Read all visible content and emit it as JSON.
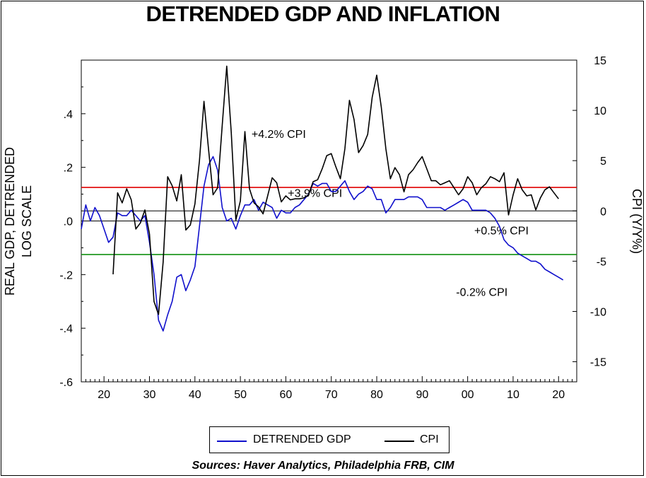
{
  "title": "DETRENDED GDP AND INFLATION",
  "source": "Sources:  Haver Analytics, Philadelphia FRB, CIM",
  "legend": {
    "gdp_label": "DETRENDED GDP",
    "cpi_label": "CPI",
    "gdp_color": "#1010cc",
    "cpi_color": "#000000"
  },
  "chart_data": {
    "type": "line",
    "x_axis": {
      "range": [
        1915,
        2024
      ],
      "ticks": [
        1920,
        1930,
        1940,
        1950,
        1960,
        1970,
        1980,
        1990,
        2000,
        2010,
        2020
      ],
      "tick_labels": [
        "20",
        "30",
        "40",
        "50",
        "60",
        "70",
        "80",
        "90",
        "00",
        "10",
        "20"
      ]
    },
    "left_axis": {
      "label_line1": "REAL GDP, DETRENDED",
      "label_line2": "LOG SCALE",
      "range": [
        -0.6,
        0.6
      ],
      "ticks": [
        -0.6,
        -0.4,
        -0.2,
        0.0,
        0.2,
        0.4
      ],
      "tick_labels": [
        "-.6",
        "-.4",
        "-.2",
        ".0",
        ".2",
        ".4"
      ]
    },
    "right_axis": {
      "label": "CPI (Y/Y%)",
      "range": [
        -17,
        15
      ],
      "ticks": [
        -15,
        -10,
        -5,
        0,
        5,
        10,
        15
      ],
      "tick_labels": [
        "-15",
        "-10",
        "-5",
        "0",
        "5",
        "10",
        "15"
      ]
    },
    "reference_lines": [
      {
        "axis": "left",
        "value": 0.125,
        "color": "#e00000"
      },
      {
        "axis": "left",
        "value": 0.0,
        "color": "#000000"
      },
      {
        "axis": "left",
        "value": -0.125,
        "color": "#109010"
      },
      {
        "axis": "right",
        "value": 0,
        "color": "#000000"
      }
    ],
    "annotations": [
      {
        "text": "+4.2% CPI",
        "x": 1917,
        "y": 0.31
      },
      {
        "text": "+3.9% CPI",
        "x": 1925,
        "y": 0.09
      },
      {
        "text": "+0.5% CPI",
        "x": 1966,
        "y": -0.05
      },
      {
        "text": "-0.2% CPI",
        "x": 1962,
        "y": -0.28
      }
    ],
    "series": [
      {
        "name": "DETRENDED GDP",
        "axis": "left",
        "color": "#1010cc",
        "points": [
          [
            1915,
            -0.03
          ],
          [
            1916,
            0.06
          ],
          [
            1917,
            0.0
          ],
          [
            1918,
            0.05
          ],
          [
            1919,
            0.02
          ],
          [
            1920,
            -0.03
          ],
          [
            1921,
            -0.08
          ],
          [
            1922,
            -0.06
          ],
          [
            1923,
            0.03
          ],
          [
            1924,
            0.02
          ],
          [
            1925,
            0.02
          ],
          [
            1926,
            0.04
          ],
          [
            1927,
            0.02
          ],
          [
            1928,
            0.0
          ],
          [
            1929,
            0.02
          ],
          [
            1930,
            -0.08
          ],
          [
            1931,
            -0.2
          ],
          [
            1932,
            -0.37
          ],
          [
            1933,
            -0.41
          ],
          [
            1934,
            -0.35
          ],
          [
            1935,
            -0.3
          ],
          [
            1936,
            -0.21
          ],
          [
            1937,
            -0.2
          ],
          [
            1938,
            -0.26
          ],
          [
            1939,
            -0.22
          ],
          [
            1940,
            -0.17
          ],
          [
            1941,
            -0.02
          ],
          [
            1942,
            0.13
          ],
          [
            1943,
            0.21
          ],
          [
            1944,
            0.24
          ],
          [
            1945,
            0.19
          ],
          [
            1946,
            0.05
          ],
          [
            1947,
            0.0
          ],
          [
            1948,
            0.01
          ],
          [
            1949,
            -0.03
          ],
          [
            1950,
            0.02
          ],
          [
            1951,
            0.06
          ],
          [
            1952,
            0.06
          ],
          [
            1953,
            0.08
          ],
          [
            1954,
            0.04
          ],
          [
            1955,
            0.07
          ],
          [
            1956,
            0.06
          ],
          [
            1957,
            0.05
          ],
          [
            1958,
            0.01
          ],
          [
            1959,
            0.04
          ],
          [
            1960,
            0.03
          ],
          [
            1961,
            0.03
          ],
          [
            1962,
            0.05
          ],
          [
            1963,
            0.06
          ],
          [
            1964,
            0.08
          ],
          [
            1965,
            0.1
          ],
          [
            1966,
            0.14
          ],
          [
            1967,
            0.13
          ],
          [
            1968,
            0.14
          ],
          [
            1969,
            0.14
          ],
          [
            1970,
            0.11
          ],
          [
            1971,
            0.11
          ],
          [
            1972,
            0.13
          ],
          [
            1973,
            0.15
          ],
          [
            1974,
            0.11
          ],
          [
            1975,
            0.08
          ],
          [
            1976,
            0.1
          ],
          [
            1977,
            0.11
          ],
          [
            1978,
            0.13
          ],
          [
            1979,
            0.12
          ],
          [
            1980,
            0.08
          ],
          [
            1981,
            0.08
          ],
          [
            1982,
            0.03
          ],
          [
            1983,
            0.05
          ],
          [
            1984,
            0.08
          ],
          [
            1985,
            0.08
          ],
          [
            1986,
            0.08
          ],
          [
            1987,
            0.09
          ],
          [
            1988,
            0.09
          ],
          [
            1989,
            0.09
          ],
          [
            1990,
            0.08
          ],
          [
            1991,
            0.05
          ],
          [
            1992,
            0.05
          ],
          [
            1993,
            0.05
          ],
          [
            1994,
            0.05
          ],
          [
            1995,
            0.04
          ],
          [
            1996,
            0.05
          ],
          [
            1997,
            0.06
          ],
          [
            1998,
            0.07
          ],
          [
            1999,
            0.08
          ],
          [
            2000,
            0.07
          ],
          [
            2001,
            0.04
          ],
          [
            2002,
            0.04
          ],
          [
            2003,
            0.04
          ],
          [
            2004,
            0.04
          ],
          [
            2005,
            0.03
          ],
          [
            2006,
            0.01
          ],
          [
            2007,
            -0.02
          ],
          [
            2008,
            -0.07
          ],
          [
            2009,
            -0.09
          ],
          [
            2010,
            -0.1
          ],
          [
            2011,
            -0.12
          ],
          [
            2012,
            -0.13
          ],
          [
            2013,
            -0.14
          ],
          [
            2014,
            -0.15
          ],
          [
            2015,
            -0.15
          ],
          [
            2016,
            -0.16
          ],
          [
            2017,
            -0.18
          ],
          [
            2018,
            -0.19
          ],
          [
            2019,
            -0.2
          ],
          [
            2020,
            -0.21
          ],
          [
            2021,
            -0.22
          ]
        ]
      },
      {
        "name": "CPI",
        "axis": "right",
        "color": "#000000",
        "points": [
          [
            1922,
            -6.3
          ],
          [
            1923,
            1.8
          ],
          [
            1924,
            0.8
          ],
          [
            1925,
            2.2
          ],
          [
            1926,
            1.1
          ],
          [
            1927,
            -1.8
          ],
          [
            1928,
            -1.2
          ],
          [
            1929,
            0.1
          ],
          [
            1930,
            -2.3
          ],
          [
            1931,
            -9.0
          ],
          [
            1932,
            -10.3
          ],
          [
            1933,
            -5.1
          ],
          [
            1934,
            3.4
          ],
          [
            1935,
            2.5
          ],
          [
            1936,
            1.0
          ],
          [
            1937,
            3.6
          ],
          [
            1938,
            -1.9
          ],
          [
            1939,
            -1.4
          ],
          [
            1940,
            0.7
          ],
          [
            1941,
            5.0
          ],
          [
            1942,
            10.9
          ],
          [
            1943,
            6.1
          ],
          [
            1944,
            1.6
          ],
          [
            1945,
            2.3
          ],
          [
            1946,
            8.5
          ],
          [
            1947,
            14.4
          ],
          [
            1948,
            7.8
          ],
          [
            1949,
            -0.9
          ],
          [
            1950,
            1.0
          ],
          [
            1951,
            7.9
          ],
          [
            1952,
            2.2
          ],
          [
            1953,
            0.8
          ],
          [
            1954,
            0.4
          ],
          [
            1955,
            -0.3
          ],
          [
            1956,
            1.5
          ],
          [
            1957,
            3.3
          ],
          [
            1958,
            2.8
          ],
          [
            1959,
            0.9
          ],
          [
            1960,
            1.5
          ],
          [
            1961,
            1.1
          ],
          [
            1962,
            1.2
          ],
          [
            1963,
            1.2
          ],
          [
            1964,
            1.3
          ],
          [
            1965,
            1.6
          ],
          [
            1966,
            2.9
          ],
          [
            1967,
            3.1
          ],
          [
            1968,
            4.2
          ],
          [
            1969,
            5.5
          ],
          [
            1970,
            5.7
          ],
          [
            1971,
            4.4
          ],
          [
            1972,
            3.2
          ],
          [
            1973,
            6.2
          ],
          [
            1974,
            11.0
          ],
          [
            1975,
            9.1
          ],
          [
            1976,
            5.8
          ],
          [
            1977,
            6.5
          ],
          [
            1978,
            7.6
          ],
          [
            1979,
            11.3
          ],
          [
            1980,
            13.5
          ],
          [
            1981,
            10.3
          ],
          [
            1982,
            6.2
          ],
          [
            1983,
            3.2
          ],
          [
            1984,
            4.3
          ],
          [
            1985,
            3.6
          ],
          [
            1986,
            1.9
          ],
          [
            1987,
            3.6
          ],
          [
            1988,
            4.1
          ],
          [
            1989,
            4.8
          ],
          [
            1990,
            5.4
          ],
          [
            1991,
            4.2
          ],
          [
            1992,
            3.0
          ],
          [
            1993,
            3.0
          ],
          [
            1994,
            2.6
          ],
          [
            1995,
            2.8
          ],
          [
            1996,
            3.0
          ],
          [
            1997,
            2.3
          ],
          [
            1998,
            1.6
          ],
          [
            1999,
            2.2
          ],
          [
            2000,
            3.4
          ],
          [
            2001,
            2.8
          ],
          [
            2002,
            1.6
          ],
          [
            2003,
            2.3
          ],
          [
            2004,
            2.7
          ],
          [
            2005,
            3.4
          ],
          [
            2006,
            3.2
          ],
          [
            2007,
            2.9
          ],
          [
            2008,
            3.8
          ],
          [
            2009,
            -0.4
          ],
          [
            2010,
            1.6
          ],
          [
            2011,
            3.2
          ],
          [
            2012,
            2.1
          ],
          [
            2013,
            1.5
          ],
          [
            2014,
            1.6
          ],
          [
            2015,
            0.1
          ],
          [
            2016,
            1.3
          ],
          [
            2017,
            2.1
          ],
          [
            2018,
            2.4
          ],
          [
            2019,
            1.8
          ],
          [
            2020,
            1.2
          ]
        ]
      }
    ]
  }
}
